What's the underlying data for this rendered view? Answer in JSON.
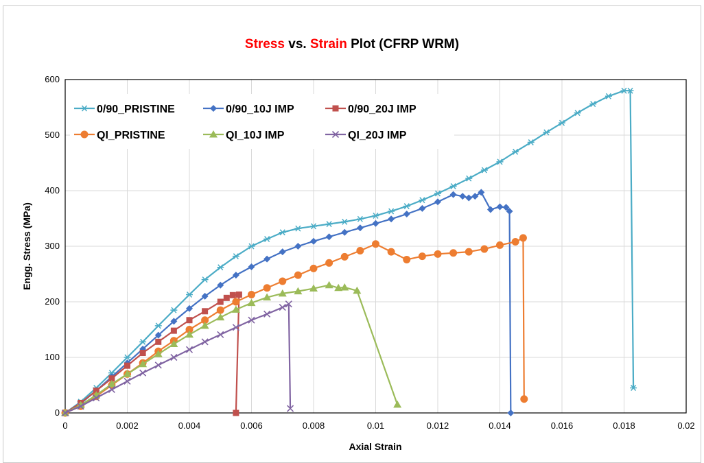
{
  "chart_data": {
    "type": "line",
    "title_parts": [
      {
        "text": "Stress",
        "color": "#ff0000"
      },
      {
        "text": " vs. ",
        "color": "#000000"
      },
      {
        "text": "Strain",
        "color": "#ff0000"
      },
      {
        "text": " Plot (CFRP WRM)",
        "color": "#000000"
      }
    ],
    "xlabel": "Axial Strain",
    "ylabel": "Engg. Stress (MPa)",
    "xlim": [
      0,
      0.02
    ],
    "ylim": [
      0,
      600
    ],
    "xticks": [
      "0",
      "0.002",
      "0.004",
      "0.006",
      "0.008",
      "0.01",
      "0.012",
      "0.014",
      "0.016",
      "0.018",
      "0.02"
    ],
    "yticks": [
      "0",
      "100",
      "200",
      "300",
      "400",
      "500",
      "600"
    ],
    "grid": true,
    "legend_position": "top-left",
    "series": [
      {
        "name": "0/90_PRISTINE",
        "color": "#4bacc6",
        "marker": "star",
        "points": [
          [
            0,
            0
          ],
          [
            0.0005,
            20
          ],
          [
            0.001,
            45
          ],
          [
            0.0015,
            72
          ],
          [
            0.002,
            100
          ],
          [
            0.0025,
            128
          ],
          [
            0.003,
            157
          ],
          [
            0.0035,
            185
          ],
          [
            0.004,
            213
          ],
          [
            0.0045,
            240
          ],
          [
            0.005,
            262
          ],
          [
            0.0055,
            282
          ],
          [
            0.006,
            300
          ],
          [
            0.0065,
            313
          ],
          [
            0.007,
            325
          ],
          [
            0.0075,
            332
          ],
          [
            0.008,
            336
          ],
          [
            0.0085,
            340
          ],
          [
            0.009,
            344
          ],
          [
            0.0095,
            349
          ],
          [
            0.01,
            355
          ],
          [
            0.0105,
            363
          ],
          [
            0.011,
            372
          ],
          [
            0.0115,
            383
          ],
          [
            0.012,
            395
          ],
          [
            0.0125,
            408
          ],
          [
            0.013,
            422
          ],
          [
            0.0135,
            437
          ],
          [
            0.014,
            452
          ],
          [
            0.0145,
            470
          ],
          [
            0.015,
            487
          ],
          [
            0.0155,
            505
          ],
          [
            0.016,
            522
          ],
          [
            0.0165,
            540
          ],
          [
            0.017,
            556
          ],
          [
            0.0175,
            570
          ],
          [
            0.018,
            580
          ],
          [
            0.0182,
            580
          ],
          [
            0.0183,
            45
          ]
        ]
      },
      {
        "name": "0/90_10J IMP",
        "color": "#4472c4",
        "marker": "diamond",
        "points": [
          [
            0,
            0
          ],
          [
            0.0005,
            17
          ],
          [
            0.001,
            40
          ],
          [
            0.0015,
            65
          ],
          [
            0.002,
            90
          ],
          [
            0.0025,
            115
          ],
          [
            0.003,
            140
          ],
          [
            0.0035,
            165
          ],
          [
            0.004,
            188
          ],
          [
            0.0045,
            210
          ],
          [
            0.005,
            230
          ],
          [
            0.0055,
            248
          ],
          [
            0.006,
            263
          ],
          [
            0.0065,
            277
          ],
          [
            0.007,
            290
          ],
          [
            0.0075,
            300
          ],
          [
            0.008,
            309
          ],
          [
            0.0085,
            317
          ],
          [
            0.009,
            325
          ],
          [
            0.0095,
            333
          ],
          [
            0.01,
            341
          ],
          [
            0.0105,
            349
          ],
          [
            0.011,
            358
          ],
          [
            0.0115,
            368
          ],
          [
            0.012,
            380
          ],
          [
            0.0125,
            393
          ],
          [
            0.0128,
            390
          ],
          [
            0.013,
            387
          ],
          [
            0.0132,
            390
          ],
          [
            0.0134,
            397
          ],
          [
            0.0137,
            366
          ],
          [
            0.014,
            371
          ],
          [
            0.0142,
            370
          ],
          [
            0.01431,
            363
          ],
          [
            0.01435,
            0
          ]
        ]
      },
      {
        "name": "0/90_20J IMP",
        "color": "#c0504d",
        "marker": "square",
        "points": [
          [
            0,
            0
          ],
          [
            0.0005,
            18
          ],
          [
            0.001,
            40
          ],
          [
            0.0015,
            62
          ],
          [
            0.002,
            85
          ],
          [
            0.0025,
            108
          ],
          [
            0.003,
            128
          ],
          [
            0.0035,
            148
          ],
          [
            0.004,
            167
          ],
          [
            0.0045,
            183
          ],
          [
            0.005,
            200
          ],
          [
            0.0052,
            207
          ],
          [
            0.0054,
            212
          ],
          [
            0.0056,
            213
          ],
          [
            0.0055,
            0
          ]
        ]
      },
      {
        "name": "QI_PRISTINE",
        "color": "#ed7d31",
        "marker": "circle",
        "points": [
          [
            0,
            0
          ],
          [
            0.0005,
            12
          ],
          [
            0.001,
            30
          ],
          [
            0.0015,
            50
          ],
          [
            0.002,
            70
          ],
          [
            0.0025,
            90
          ],
          [
            0.003,
            111
          ],
          [
            0.0035,
            130
          ],
          [
            0.004,
            150
          ],
          [
            0.0045,
            167
          ],
          [
            0.005,
            185
          ],
          [
            0.0055,
            200
          ],
          [
            0.006,
            213
          ],
          [
            0.0065,
            225
          ],
          [
            0.007,
            237
          ],
          [
            0.0075,
            248
          ],
          [
            0.008,
            260
          ],
          [
            0.0085,
            270
          ],
          [
            0.009,
            281
          ],
          [
            0.0095,
            292
          ],
          [
            0.01,
            304
          ],
          [
            0.0105,
            290
          ],
          [
            0.011,
            276
          ],
          [
            0.0115,
            282
          ],
          [
            0.012,
            286
          ],
          [
            0.0125,
            288
          ],
          [
            0.013,
            290
          ],
          [
            0.0135,
            295
          ],
          [
            0.014,
            302
          ],
          [
            0.0145,
            308
          ],
          [
            0.01475,
            315
          ],
          [
            0.01478,
            25
          ]
        ]
      },
      {
        "name": "QI_10J IMP",
        "color": "#9bbb59",
        "marker": "triangle",
        "points": [
          [
            0,
            0
          ],
          [
            0.0005,
            14
          ],
          [
            0.001,
            32
          ],
          [
            0.0015,
            52
          ],
          [
            0.002,
            70
          ],
          [
            0.0025,
            88
          ],
          [
            0.003,
            106
          ],
          [
            0.0035,
            124
          ],
          [
            0.004,
            141
          ],
          [
            0.0045,
            157
          ],
          [
            0.005,
            172
          ],
          [
            0.0055,
            186
          ],
          [
            0.006,
            198
          ],
          [
            0.0065,
            208
          ],
          [
            0.007,
            215
          ],
          [
            0.0075,
            219
          ],
          [
            0.008,
            224
          ],
          [
            0.0085,
            230
          ],
          [
            0.0088,
            225
          ],
          [
            0.009,
            226
          ],
          [
            0.0094,
            220
          ],
          [
            0.0107,
            15
          ]
        ]
      },
      {
        "name": "QI_20J IMP",
        "color": "#8064a2",
        "marker": "x",
        "points": [
          [
            0,
            0
          ],
          [
            0.0005,
            12
          ],
          [
            0.001,
            27
          ],
          [
            0.0015,
            42
          ],
          [
            0.002,
            57
          ],
          [
            0.0025,
            72
          ],
          [
            0.003,
            86
          ],
          [
            0.0035,
            100
          ],
          [
            0.004,
            114
          ],
          [
            0.0045,
            128
          ],
          [
            0.005,
            141
          ],
          [
            0.0055,
            154
          ],
          [
            0.006,
            167
          ],
          [
            0.0065,
            178
          ],
          [
            0.007,
            190
          ],
          [
            0.0072,
            196
          ],
          [
            0.00725,
            8
          ]
        ]
      }
    ]
  }
}
